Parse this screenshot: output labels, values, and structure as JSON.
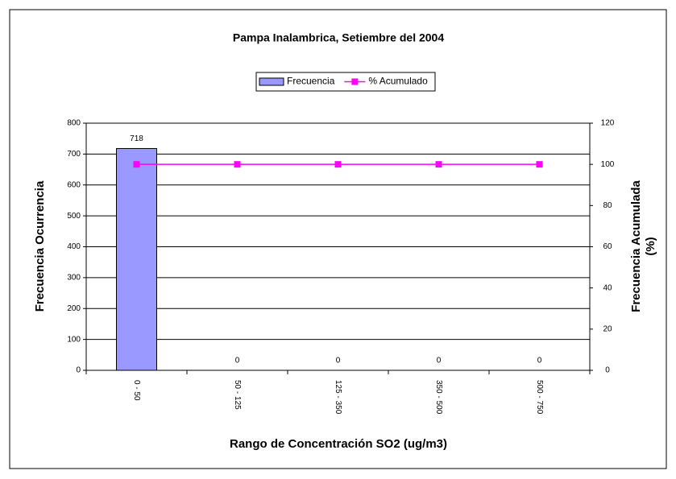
{
  "chart_data": {
    "type": "bar",
    "title": "Pampa Inalambrica, Setiembre del 2004",
    "x_label": "Rango de Concentración SO2 (ug/m3)",
    "y_label": "Frecuencia Ocurrencia",
    "y2_label": [
      "Frecuencia Acumulada",
      "(%)"
    ],
    "categories": [
      "0 - 50",
      "50 - 125",
      "125 - 350",
      "350 - 500",
      "500 - 750"
    ],
    "series": [
      {
        "name": "Frecuencia",
        "type": "bar",
        "color": "#9999ff",
        "values": [
          718,
          0,
          0,
          0,
          0
        ]
      },
      {
        "name": "% Acumulado",
        "type": "line",
        "axis": "y2",
        "color": "#ff00ff",
        "values": [
          100,
          100,
          100,
          100,
          100
        ]
      }
    ],
    "ylim": [
      0,
      800
    ],
    "yticks": [
      0,
      100,
      200,
      300,
      400,
      500,
      600,
      700,
      800
    ],
    "y2lim": [
      0,
      120
    ],
    "y2ticks": [
      0,
      20,
      40,
      60,
      80,
      100,
      120
    ],
    "grid": true,
    "legend": "top"
  }
}
